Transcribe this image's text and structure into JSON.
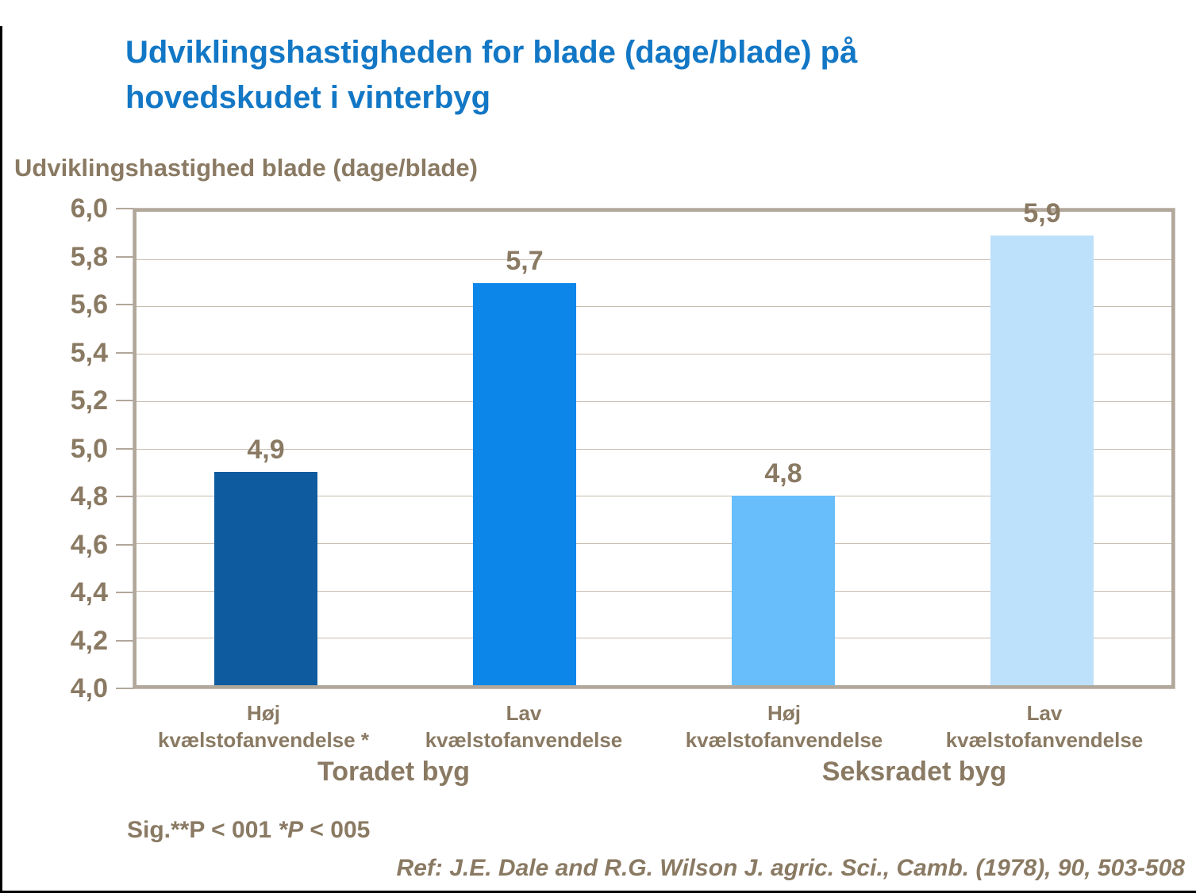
{
  "page": {
    "title": "Udviklingshastigheden for blade (dage/blade) på\nhovedskudet i vinterbyg",
    "axis_title": "Udviklingshastighed blade (dage/blade)"
  },
  "chart_data": {
    "type": "bar",
    "title": "Udviklingshastigheden for blade (dage/blade) på hovedskudet i vinterbyg",
    "ylabel": "Udviklingshastighed blade (dage/blade)",
    "xlabel": "",
    "ylim": [
      4.0,
      6.0
    ],
    "ytick_step": 0.2,
    "grid": true,
    "legend_position": "none",
    "yticks": [
      {
        "label": "6,0",
        "value": 6.0
      },
      {
        "label": "5,8",
        "value": 5.8
      },
      {
        "label": "5,6",
        "value": 5.6
      },
      {
        "label": "5,4",
        "value": 5.4
      },
      {
        "label": "5,2",
        "value": 5.2
      },
      {
        "label": "5,0",
        "value": 5.0
      },
      {
        "label": "4,8",
        "value": 4.8
      },
      {
        "label": "4,6",
        "value": 4.6
      },
      {
        "label": "4,4",
        "value": 4.4
      },
      {
        "label": "4,2",
        "value": 4.2
      },
      {
        "label": "4,0",
        "value": 4.0
      }
    ],
    "categories": [
      "Høj\nkvælstofanvendelse *",
      "Lav\nkvælstofanvendelse",
      "Høj\nkvælstofanvendelse",
      "Lav\nkvælstofanvendelse"
    ],
    "values": [
      4.9,
      5.7,
      4.8,
      5.9
    ],
    "value_labels": [
      "4,9",
      "5,7",
      "4,8",
      "5,9"
    ],
    "bar_colors": [
      "#0E5B9F",
      "#0C87E9",
      "#67BEFA",
      "#BDE0FB"
    ],
    "group_labels": [
      "Toradet byg",
      "Seksradet byg"
    ]
  },
  "footer": {
    "sig_normal1": "Sig.**P < 001 ",
    "sig_italic": "*P",
    "sig_normal2": " < 005",
    "reference": "Ref: J.E. Dale and R.G. Wilson J. agric. Sci., Camb. (1978), 90, 503-508"
  },
  "colors": {
    "title_blue": "#1277C5",
    "text_brown": "#8A7A63",
    "axis_border": "#B2A79B",
    "gridline": "#C6BCAF",
    "frame_black": "#000000"
  }
}
